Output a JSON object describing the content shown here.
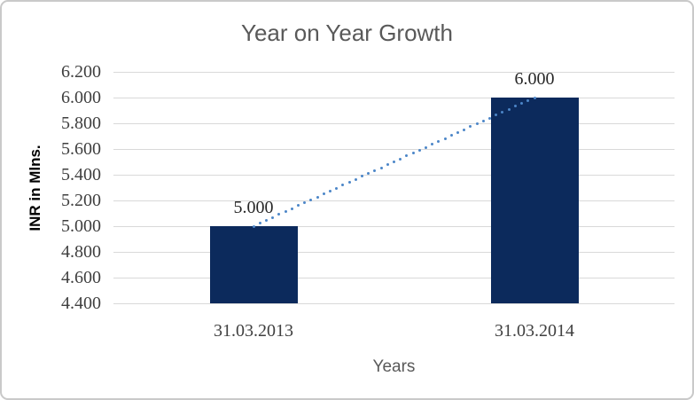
{
  "chart_data": {
    "type": "bar",
    "title": "Year on Year Growth",
    "xlabel": "Years",
    "ylabel": "INR in Mlns.",
    "categories": [
      "31.03.2013",
      "31.03.2014"
    ],
    "series": [
      {
        "name": "INR in Mlns.",
        "values": [
          5.0,
          6.0
        ]
      }
    ],
    "data_labels": [
      "5.000",
      "6.000"
    ],
    "y_ticks": [
      "6.200",
      "6.000",
      "5.800",
      "5.600",
      "5.400",
      "5.200",
      "5.000",
      "4.800",
      "4.600",
      "4.400"
    ],
    "ylim": [
      4.4,
      6.2
    ],
    "y_tick_step": 0.2,
    "grid": true,
    "legend": "none",
    "trendline": {
      "style": "dotted",
      "from_value": 5.0,
      "to_value": 6.0
    },
    "colors": {
      "bar": "#0C2A5C",
      "trendline": "#4C86C8",
      "gridline": "#D9D9D9",
      "title": "#595959",
      "axis_title": "#595959",
      "y_axis_title": "#000000",
      "tick_label": "#3F3F3F",
      "data_label": "#262626",
      "background": "#FFFFFF",
      "frame_border": "#C9C9C9"
    }
  }
}
